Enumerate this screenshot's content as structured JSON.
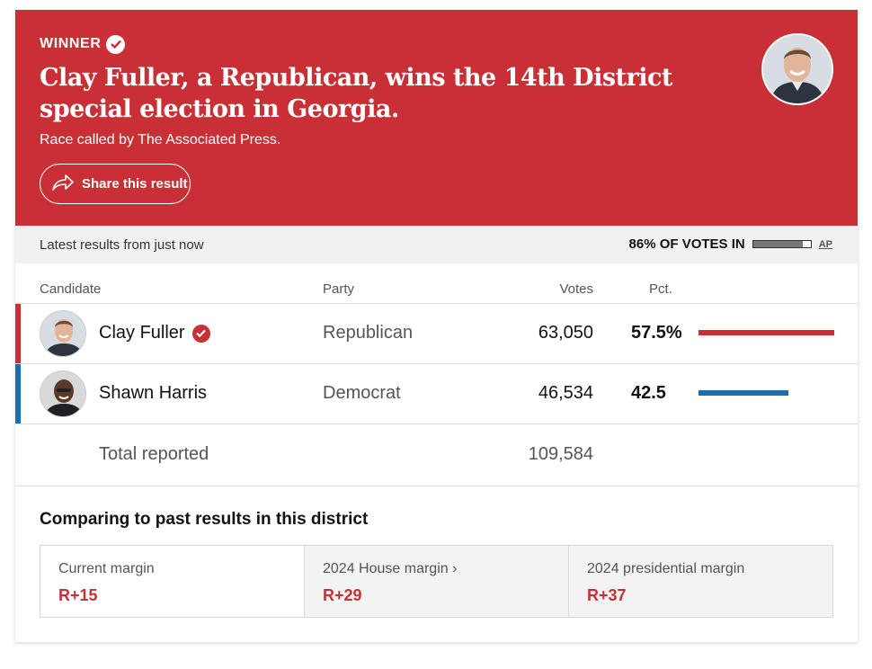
{
  "banner": {
    "winner_label": "WINNER",
    "headline": "Clay Fuller, a Republican, wins the 14th District special election in Georgia.",
    "called_by": "Race called by The Associated Press.",
    "share_label": "Share this result"
  },
  "status": {
    "latest": "Latest results from just now",
    "votes_in": "86% OF VOTES IN",
    "votes_in_fraction": 0.86,
    "source": "AP"
  },
  "table": {
    "headers": {
      "candidate": "Candidate",
      "party": "Party",
      "votes": "Votes",
      "pct": "Pct."
    },
    "rows": [
      {
        "name": "Clay Fuller",
        "party": "Republican",
        "votes": "63,050",
        "pct": "57.5%",
        "pct_value": 57.5,
        "color": "#c83036",
        "winner": true
      },
      {
        "name": "Shawn Harris",
        "party": "Democrat",
        "votes": "46,534",
        "pct": "42.5",
        "pct_value": 42.5,
        "color": "#1a6fae",
        "winner": false
      }
    ],
    "total_label": "Total reported",
    "total_votes": "109,584"
  },
  "compare": {
    "title": "Comparing to past results in this district",
    "cells": [
      {
        "label": "Current margin",
        "value": "R+15"
      },
      {
        "label": "2024 House margin ›",
        "value": "R+29"
      },
      {
        "label": "2024 presidential margin",
        "value": "R+37"
      }
    ]
  },
  "colors": {
    "republican": "#c83036",
    "democrat": "#1a6fae"
  }
}
